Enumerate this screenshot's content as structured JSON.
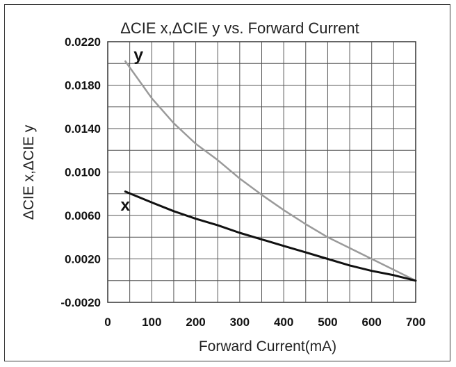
{
  "chart_data": {
    "type": "line",
    "title": "ΔCIE x,ΔCIE y vs. Forward Current",
    "xlabel": "Forward Current(mA)",
    "ylabel": "ΔCIE x,ΔCIE y",
    "xlim": [
      0,
      700
    ],
    "ylim": [
      -0.002,
      0.022
    ],
    "xticks": [
      "0",
      "100",
      "200",
      "300",
      "400",
      "500",
      "600",
      "700"
    ],
    "yticks": [
      "0.0220",
      "0.0180",
      "0.0140",
      "0.0100",
      "0.0060",
      "0.0020",
      "-0.0020"
    ],
    "grid": true,
    "series": [
      {
        "name": "y",
        "color": "#9a9a9a",
        "x": [
          40,
          100,
          150,
          200,
          250,
          300,
          350,
          400,
          450,
          500,
          550,
          600,
          650,
          700
        ],
        "y": [
          0.0202,
          0.0168,
          0.0145,
          0.0126,
          0.0111,
          0.0094,
          0.0079,
          0.0065,
          0.0052,
          0.004,
          0.003,
          0.002,
          0.001,
          0.0
        ]
      },
      {
        "name": "x",
        "color": "#111111",
        "x": [
          40,
          100,
          150,
          200,
          250,
          300,
          350,
          400,
          450,
          500,
          550,
          600,
          650,
          700
        ],
        "y": [
          0.0082,
          0.0072,
          0.0064,
          0.0057,
          0.0051,
          0.0044,
          0.0038,
          0.0032,
          0.0026,
          0.002,
          0.0014,
          0.0009,
          0.0005,
          0.0
        ]
      }
    ]
  }
}
